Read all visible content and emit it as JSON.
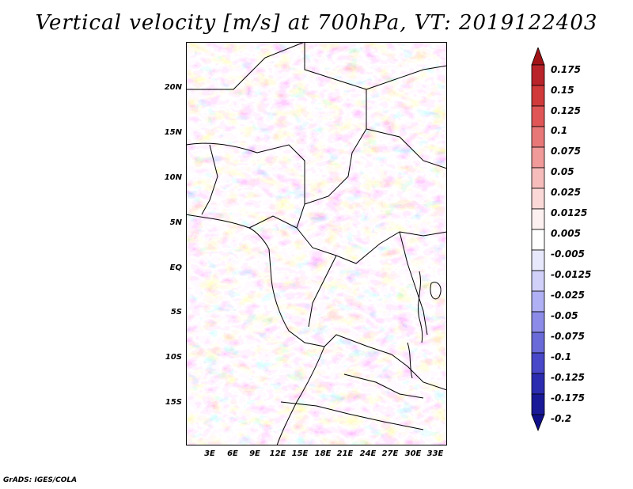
{
  "title": "Vertical velocity [m/s] at 700hPa, VT: 2019122403",
  "credit": "GrADS: IGES/COLA",
  "map": {
    "lat_labels": [
      "20N",
      "15N",
      "10N",
      "5N",
      "EQ",
      "5S",
      "10S",
      "15S"
    ],
    "lat_values": [
      20,
      15,
      10,
      5,
      0,
      -5,
      -10,
      -15
    ],
    "lon_labels": [
      "3E",
      "6E",
      "9E",
      "12E",
      "15E",
      "18E",
      "21E",
      "24E",
      "27E",
      "30E",
      "33E"
    ],
    "lon_values": [
      3,
      6,
      9,
      12,
      15,
      18,
      21,
      24,
      27,
      30,
      33
    ],
    "lon_range": [
      0,
      34.5
    ],
    "lat_range": [
      -20,
      25
    ]
  },
  "colorbar": {
    "labels": [
      "0.175",
      "0.15",
      "0.125",
      "0.1",
      "0.075",
      "0.05",
      "0.025",
      "0.0125",
      "0.005",
      "-0.005",
      "-0.0125",
      "-0.025",
      "-0.05",
      "-0.075",
      "-0.1",
      "-0.125",
      "-0.175",
      "-0.2"
    ],
    "colors": [
      "#a01418",
      "#b8242a",
      "#d03a3a",
      "#e05656",
      "#e87878",
      "#f09a9a",
      "#f6bcbc",
      "#fad8d8",
      "#fdf0f0",
      "#ffffff",
      "#e8e8fc",
      "#d0d0f8",
      "#b0b0f4",
      "#8c8ce8",
      "#6a6ad8",
      "#4848c8",
      "#2c2cb0",
      "#1a1a98",
      "#10108a"
    ]
  }
}
